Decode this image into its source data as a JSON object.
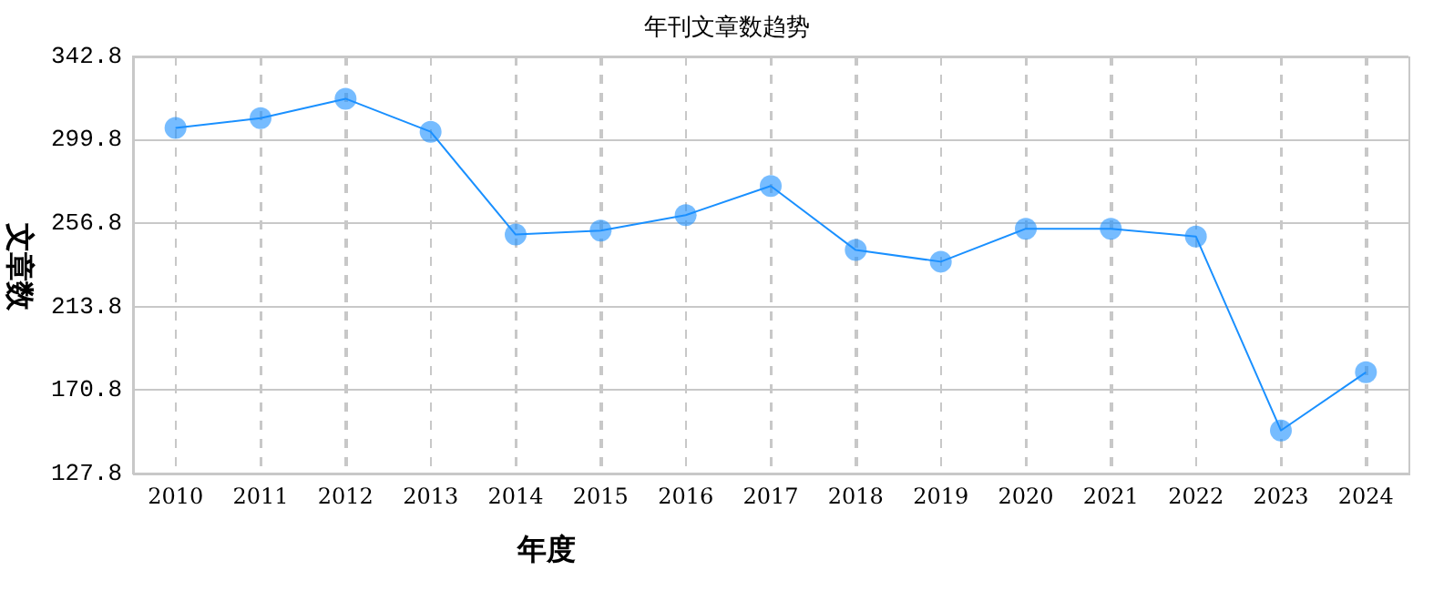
{
  "chart_data": {
    "type": "line",
    "title": "年刊文章数趋势",
    "xlabel": "年度",
    "ylabel": "文章数",
    "categories": [
      "2010",
      "2011",
      "2012",
      "2013",
      "2014",
      "2015",
      "2016",
      "2017",
      "2018",
      "2019",
      "2020",
      "2021",
      "2022",
      "2023",
      "2024"
    ],
    "series": [
      {
        "color": "#1a90ff",
        "values": [
          306,
          311,
          321,
          304,
          251,
          253,
          261,
          276,
          243,
          237,
          254,
          254,
          250,
          150,
          180
        ]
      }
    ],
    "ylim": [
      127.8,
      342.8
    ],
    "yticks": [
      127.8,
      170.8,
      213.8,
      256.8,
      299.8,
      342.8
    ],
    "grid": true,
    "legend": false,
    "marker": "circle",
    "line_style": "solid"
  }
}
